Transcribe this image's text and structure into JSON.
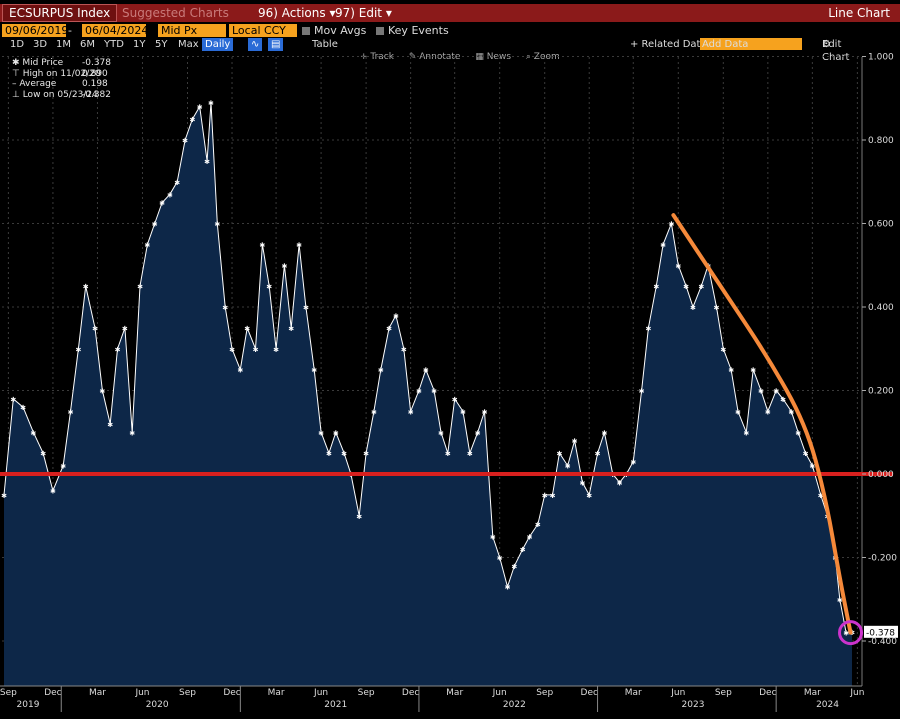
{
  "toolbar": {
    "ticker": "ECSURPUS Index",
    "suggested": "Suggested Charts",
    "actions": "96) Actions",
    "edit": "97) Edit",
    "chart_type": "Line Chart"
  },
  "settings": {
    "start_date": "09/06/2019",
    "end_date": "06/04/2024",
    "price_field": "Mid Px",
    "currency": "Local CCY",
    "mov_avgs": "Mov Avgs",
    "key_events": "Key Events",
    "periods": [
      "1D",
      "3D",
      "1M",
      "6M",
      "YTD",
      "1Y",
      "5Y",
      "Max"
    ],
    "frequency": "Daily",
    "table": "Table",
    "related": "+ Related Dat",
    "add_data": "Add Data",
    "edit_chart": "Edit Chart"
  },
  "tools": [
    "Track",
    "Annotate",
    "News",
    "Zoom"
  ],
  "legend": {
    "mid_label": "Mid Price",
    "mid_value": "-0.378",
    "high_label": "High on 11/02/20",
    "high_value": "0.890",
    "avg_label": "Average",
    "avg_value": "0.198",
    "low_label": "Low on 05/23/24",
    "low_value": "-0.382"
  },
  "colors": {
    "area_fill": "#0d2748",
    "line": "#ffffff",
    "zero_line": "#d8201e",
    "trend": "#f5893a",
    "circle": "#cc33cc"
  },
  "chart_data": {
    "type": "area",
    "title": "",
    "xlabel": "",
    "ylabel": "",
    "ylim": [
      -0.5,
      1.0
    ],
    "yticks": [
      "1.000",
      "0.800",
      "0.600",
      "0.400",
      "0.200",
      "0.000",
      "-0.200",
      "-0.400"
    ],
    "ytick_values": [
      1.0,
      0.8,
      0.6,
      0.4,
      0.2,
      0.0,
      -0.2,
      -0.4
    ],
    "xmonth_labels": [
      "Sep",
      "Dec",
      "Mar",
      "Jun",
      "Sep",
      "Dec",
      "Mar",
      "Jun",
      "Sep",
      "Dec",
      "Mar",
      "Jun",
      "Sep",
      "Dec",
      "Mar",
      "Jun",
      "Sep",
      "Dec",
      "Mar",
      "Jun"
    ],
    "xmonth_dates": [
      "2019-09",
      "2019-12",
      "2020-03",
      "2020-06",
      "2020-09",
      "2020-12",
      "2021-03",
      "2021-06",
      "2021-09",
      "2021-12",
      "2022-03",
      "2022-06",
      "2022-09",
      "2022-12",
      "2023-03",
      "2023-06",
      "2023-09",
      "2023-12",
      "2024-03",
      "2024-06"
    ],
    "xyear_labels": [
      "2019",
      "2020",
      "2021",
      "2022",
      "2023",
      "2024"
    ],
    "xyear_dates": [
      "2019-11",
      "2020-07",
      "2021-07",
      "2022-07",
      "2023-07",
      "2024-04"
    ],
    "last_value_label": "-0.378",
    "series": [
      {
        "dates": [
          "2019-09-06",
          "2019-09-25",
          "2019-10-15",
          "2019-11-05",
          "2019-11-25",
          "2019-12-15",
          "2020-01-05",
          "2020-01-20",
          "2020-02-05",
          "2020-02-20",
          "2020-03-10",
          "2020-03-25",
          "2020-04-10",
          "2020-04-25",
          "2020-05-10",
          "2020-05-25",
          "2020-06-10",
          "2020-06-25",
          "2020-07-10",
          "2020-07-25",
          "2020-08-10",
          "2020-08-25",
          "2020-09-10",
          "2020-09-25",
          "2020-10-10",
          "2020-10-25",
          "2020-11-02",
          "2020-11-15",
          "2020-12-01",
          "2020-12-15",
          "2021-01-01",
          "2021-01-15",
          "2021-02-01",
          "2021-02-15",
          "2021-03-01",
          "2021-03-15",
          "2021-04-01",
          "2021-04-15",
          "2021-05-01",
          "2021-05-15",
          "2021-06-01",
          "2021-06-15",
          "2021-07-01",
          "2021-07-15",
          "2021-08-01",
          "2021-08-15",
          "2021-09-01",
          "2021-09-15",
          "2021-10-01",
          "2021-10-15",
          "2021-11-01",
          "2021-11-15",
          "2021-12-01",
          "2021-12-15",
          "2022-01-01",
          "2022-01-15",
          "2022-02-01",
          "2022-02-15",
          "2022-03-01",
          "2022-03-15",
          "2022-04-01",
          "2022-04-15",
          "2022-05-01",
          "2022-05-15",
          "2022-06-01",
          "2022-06-15",
          "2022-07-01",
          "2022-07-15",
          "2022-08-01",
          "2022-08-15",
          "2022-09-01",
          "2022-09-15",
          "2022-10-01",
          "2022-10-15",
          "2022-11-01",
          "2022-11-15",
          "2022-12-01",
          "2022-12-15",
          "2023-01-01",
          "2023-01-15",
          "2023-02-01",
          "2023-02-15",
          "2023-03-01",
          "2023-03-15",
          "2023-04-01",
          "2023-04-15",
          "2023-05-01",
          "2023-05-15",
          "2023-06-01",
          "2023-06-15",
          "2023-07-01",
          "2023-07-15",
          "2023-08-01",
          "2023-08-15",
          "2023-09-01",
          "2023-09-15",
          "2023-10-01",
          "2023-10-15",
          "2023-11-01",
          "2023-11-15",
          "2023-12-01",
          "2023-12-15",
          "2024-01-01",
          "2024-01-15",
          "2024-02-01",
          "2024-02-15",
          "2024-03-01",
          "2024-03-15",
          "2024-04-01",
          "2024-04-15",
          "2024-05-01",
          "2024-05-10",
          "2024-05-23",
          "2024-06-04"
        ],
        "values": [
          -0.05,
          0.18,
          0.16,
          0.1,
          0.05,
          -0.04,
          0.02,
          0.15,
          0.3,
          0.45,
          0.35,
          0.2,
          0.12,
          0.3,
          0.35,
          0.1,
          0.45,
          0.55,
          0.6,
          0.65,
          0.67,
          0.7,
          0.8,
          0.85,
          0.88,
          0.75,
          0.89,
          0.6,
          0.4,
          0.3,
          0.25,
          0.35,
          0.3,
          0.55,
          0.45,
          0.3,
          0.5,
          0.35,
          0.55,
          0.4,
          0.25,
          0.1,
          0.05,
          0.1,
          0.05,
          0.0,
          -0.1,
          0.05,
          0.15,
          0.25,
          0.35,
          0.38,
          0.3,
          0.15,
          0.2,
          0.25,
          0.2,
          0.1,
          0.05,
          0.18,
          0.15,
          0.05,
          0.1,
          0.15,
          -0.15,
          -0.2,
          -0.27,
          -0.22,
          -0.18,
          -0.15,
          -0.12,
          -0.05,
          -0.05,
          0.05,
          0.02,
          0.08,
          -0.02,
          -0.05,
          0.05,
          0.1,
          0.0,
          -0.02,
          0.0,
          0.03,
          0.2,
          0.35,
          0.45,
          0.55,
          0.6,
          0.5,
          0.45,
          0.4,
          0.45,
          0.5,
          0.4,
          0.3,
          0.25,
          0.15,
          0.1,
          0.25,
          0.2,
          0.15,
          0.2,
          0.18,
          0.15,
          0.1,
          0.05,
          0.02,
          -0.05,
          -0.1,
          -0.2,
          -0.3,
          -0.38,
          -0.378
        ]
      }
    ],
    "annotations": [
      {
        "type": "hline",
        "y": 0.0
      },
      {
        "type": "curve",
        "points": [
          [
            "2023-06-05",
            0.62
          ],
          [
            "2023-09-15",
            0.44
          ],
          [
            "2023-12-15",
            0.28
          ],
          [
            "2024-03-01",
            0.12
          ],
          [
            "2024-04-10",
            -0.05
          ],
          [
            "2024-05-10",
            -0.25
          ],
          [
            "2024-06-01",
            -0.38
          ]
        ]
      },
      {
        "type": "circle",
        "date": "2024-06-01",
        "y": -0.38
      }
    ]
  }
}
